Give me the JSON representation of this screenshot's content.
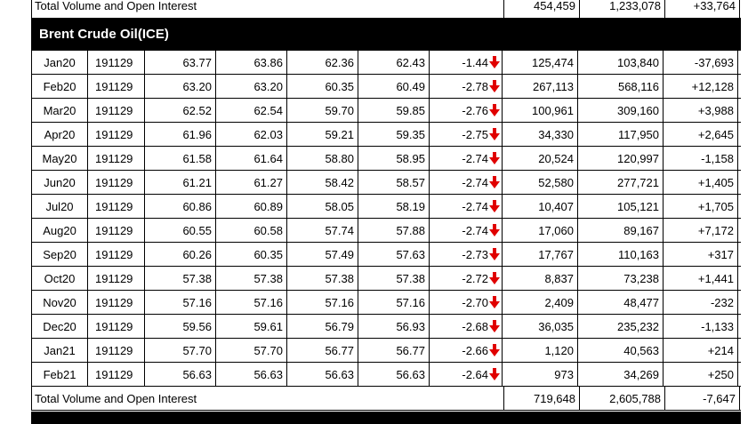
{
  "top_total": {
    "label": "Total Volume and Open Interest",
    "volume": "454,459",
    "open_interest": "1,233,078",
    "oi_change": "+33,764"
  },
  "section_title": "Brent Crude Oil(ICE)",
  "rows": [
    {
      "month": "Jan20",
      "date": "191129",
      "open": "63.77",
      "high": "63.86",
      "low": "62.36",
      "settle": "62.43",
      "change": "-1.44",
      "volume": "125,474",
      "open_interest": "103,840",
      "oi_change": "-37,693"
    },
    {
      "month": "Feb20",
      "date": "191129",
      "open": "63.20",
      "high": "63.20",
      "low": "60.35",
      "settle": "60.49",
      "change": "-2.78",
      "volume": "267,113",
      "open_interest": "568,116",
      "oi_change": "+12,128"
    },
    {
      "month": "Mar20",
      "date": "191129",
      "open": "62.52",
      "high": "62.54",
      "low": "59.70",
      "settle": "59.85",
      "change": "-2.76",
      "volume": "100,961",
      "open_interest": "309,160",
      "oi_change": "+3,988"
    },
    {
      "month": "Apr20",
      "date": "191129",
      "open": "61.96",
      "high": "62.03",
      "low": "59.21",
      "settle": "59.35",
      "change": "-2.75",
      "volume": "34,330",
      "open_interest": "117,950",
      "oi_change": "+2,645"
    },
    {
      "month": "May20",
      "date": "191129",
      "open": "61.58",
      "high": "61.64",
      "low": "58.80",
      "settle": "58.95",
      "change": "-2.74",
      "volume": "20,524",
      "open_interest": "120,997",
      "oi_change": "-1,158"
    },
    {
      "month": "Jun20",
      "date": "191129",
      "open": "61.21",
      "high": "61.27",
      "low": "58.42",
      "settle": "58.57",
      "change": "-2.74",
      "volume": "52,580",
      "open_interest": "277,721",
      "oi_change": "+1,405"
    },
    {
      "month": "Jul20",
      "date": "191129",
      "open": "60.86",
      "high": "60.89",
      "low": "58.05",
      "settle": "58.19",
      "change": "-2.74",
      "volume": "10,407",
      "open_interest": "105,121",
      "oi_change": "+1,705"
    },
    {
      "month": "Aug20",
      "date": "191129",
      "open": "60.55",
      "high": "60.58",
      "low": "57.74",
      "settle": "57.88",
      "change": "-2.74",
      "volume": "17,060",
      "open_interest": "89,167",
      "oi_change": "+7,172"
    },
    {
      "month": "Sep20",
      "date": "191129",
      "open": "60.26",
      "high": "60.35",
      "low": "57.49",
      "settle": "57.63",
      "change": "-2.73",
      "volume": "17,767",
      "open_interest": "110,163",
      "oi_change": "+317"
    },
    {
      "month": "Oct20",
      "date": "191129",
      "open": "57.38",
      "high": "57.38",
      "low": "57.38",
      "settle": "57.38",
      "change": "-2.72",
      "volume": "8,837",
      "open_interest": "73,238",
      "oi_change": "+1,441"
    },
    {
      "month": "Nov20",
      "date": "191129",
      "open": "57.16",
      "high": "57.16",
      "low": "57.16",
      "settle": "57.16",
      "change": "-2.70",
      "volume": "2,409",
      "open_interest": "48,477",
      "oi_change": "-232"
    },
    {
      "month": "Dec20",
      "date": "191129",
      "open": "59.56",
      "high": "59.61",
      "low": "56.79",
      "settle": "56.93",
      "change": "-2.68",
      "volume": "36,035",
      "open_interest": "235,232",
      "oi_change": "-1,133"
    },
    {
      "month": "Jan21",
      "date": "191129",
      "open": "57.70",
      "high": "57.70",
      "low": "56.77",
      "settle": "56.77",
      "change": "-2.66",
      "volume": "1,120",
      "open_interest": "40,563",
      "oi_change": "+214"
    },
    {
      "month": "Feb21",
      "date": "191129",
      "open": "56.63",
      "high": "56.63",
      "low": "56.63",
      "settle": "56.63",
      "change": "-2.64",
      "volume": "973",
      "open_interest": "34,269",
      "oi_change": "+250"
    }
  ],
  "bottom_total": {
    "label": "Total Volume and Open Interest",
    "volume": "719,648",
    "open_interest": "2,605,788",
    "oi_change": "-7,647"
  },
  "colors": {
    "down_arrow": "#e00000",
    "header_bg": "#000000"
  },
  "icons": {
    "change_indicator": "down-arrow-icon"
  }
}
